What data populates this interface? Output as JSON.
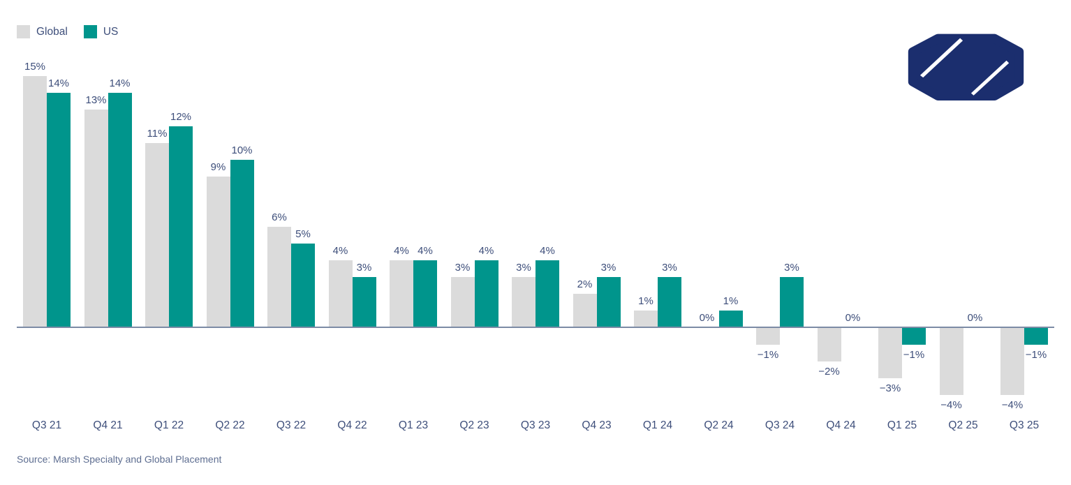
{
  "legend": {
    "items": [
      {
        "label": "Global",
        "color": "#DBDBDB"
      },
      {
        "label": "US",
        "color": "#00958C"
      }
    ]
  },
  "logo": {
    "name": "marsh-mclennan-logo",
    "color": "#1B2E6E",
    "slash_color": "#FFFFFF"
  },
  "source": "Source: Marsh Specialty and Global Placement",
  "chart_data": {
    "type": "bar",
    "title": "",
    "xlabel": "",
    "ylabel": "",
    "value_suffix": "%",
    "data_labels": true,
    "grid": false,
    "legend_position": "top-left",
    "ylim": [
      -5,
      16
    ],
    "baseline": 0,
    "categories": [
      "Q3 21",
      "Q4 21",
      "Q1 22",
      "Q2 22",
      "Q3 22",
      "Q4 22",
      "Q1 23",
      "Q2 23",
      "Q3 23",
      "Q4 23",
      "Q1 24",
      "Q2 24",
      "Q3 24",
      "Q4 24",
      "Q1 25",
      "Q2 25",
      "Q3 25"
    ],
    "series": [
      {
        "name": "Global",
        "color": "#DBDBDB",
        "values": [
          15,
          13,
          11,
          9,
          6,
          4,
          4,
          3,
          3,
          2,
          1,
          0,
          -1,
          -2,
          -3,
          -4,
          -4
        ]
      },
      {
        "name": "US",
        "color": "#00958C",
        "values": [
          14,
          14,
          12,
          10,
          5,
          3,
          4,
          4,
          4,
          3,
          3,
          1,
          3,
          0,
          -1,
          0,
          -1
        ]
      }
    ],
    "label_color": "#3D4E7A",
    "axis_line_color": "#7C8BA5"
  }
}
